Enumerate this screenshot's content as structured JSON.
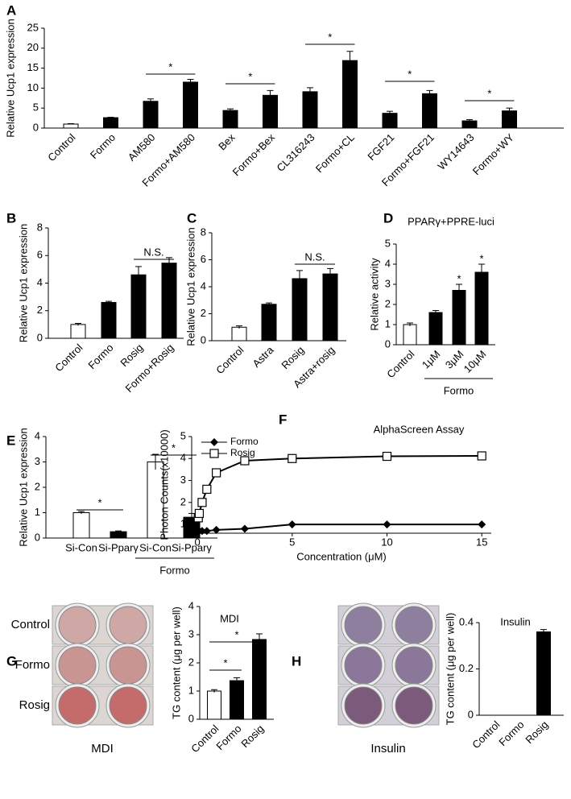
{
  "chart_data": [
    {
      "panel": "A",
      "type": "bar",
      "y_label": "Relative Ucp1 expression",
      "categories": [
        "Control",
        "Formo",
        "AM580",
        "Formo+AM580",
        "Bex",
        "Formo+Bex",
        "CL316243",
        "Formo+CL",
        "FGF21",
        "Formo+FGF21",
        "WY14643",
        "Formo+WY"
      ],
      "values": [
        1,
        2.6,
        6.7,
        11.5,
        4.4,
        8.2,
        9.1,
        16.9,
        3.7,
        8.6,
        1.8,
        4.3
      ],
      "errors": [
        0.1,
        0.1,
        0.6,
        0.7,
        0.4,
        1.2,
        1.0,
        2.3,
        0.5,
        0.8,
        0.3,
        0.7
      ],
      "colors": [
        "#ffffff",
        "#000000",
        "#000000",
        "#000000",
        "#000000",
        "#000000",
        "#000000",
        "#000000",
        "#000000",
        "#000000",
        "#000000",
        "#000000"
      ],
      "ylim": [
        0,
        25
      ],
      "yticks": [
        0,
        5,
        10,
        15,
        20,
        25
      ],
      "annotations": [
        "*",
        "*",
        "*",
        "*",
        "*"
      ]
    },
    {
      "panel": "B",
      "type": "bar",
      "y_label": "Relative Ucp1 expression",
      "categories": [
        "Control",
        "Formo",
        "Rosig",
        "Formo+Rosig"
      ],
      "values": [
        1,
        2.6,
        4.6,
        5.45
      ],
      "errors": [
        0.08,
        0.08,
        0.6,
        0.4
      ],
      "colors": [
        "#ffffff",
        "#000000",
        "#000000",
        "#000000"
      ],
      "ylim": [
        0,
        8
      ],
      "yticks": [
        0,
        2,
        4,
        6,
        8
      ],
      "annotations": [
        "N.S."
      ]
    },
    {
      "panel": "C",
      "type": "bar",
      "y_label": "Relative Ucp1 expression",
      "categories": [
        "Control",
        "Astra",
        "Rosig",
        "Astra+rosig"
      ],
      "values": [
        1,
        2.7,
        4.6,
        4.95
      ],
      "errors": [
        0.1,
        0.1,
        0.6,
        0.4
      ],
      "colors": [
        "#ffffff",
        "#000000",
        "#000000",
        "#000000"
      ],
      "ylim": [
        0,
        8
      ],
      "yticks": [
        0,
        2,
        4,
        6,
        8
      ],
      "annotations": [
        "N.S."
      ]
    },
    {
      "panel": "D",
      "type": "bar",
      "title": "PPARγ+PPRE-luci",
      "y_label": "Relative activity",
      "categories": [
        "Control",
        "1μM",
        "3μM",
        "10μM"
      ],
      "values": [
        1,
        1.6,
        2.7,
        3.6
      ],
      "errors": [
        0.08,
        0.1,
        0.3,
        0.4
      ],
      "colors": [
        "#ffffff",
        "#000000",
        "#000000",
        "#000000"
      ],
      "ylim": [
        0,
        5
      ],
      "yticks": [
        0,
        1,
        2,
        3,
        4,
        5
      ],
      "annotations": [
        "*",
        "*"
      ],
      "group_label": "Formo"
    },
    {
      "panel": "E",
      "type": "bar",
      "y_label": "Relative Ucp1 expression",
      "categories": [
        "Si-Con",
        "Si-Pparγ",
        "Si-Con",
        "Si-Pparγ"
      ],
      "values": [
        1,
        0.25,
        3.0,
        0.82
      ],
      "errors": [
        0.05,
        0.03,
        0.3,
        0.15
      ],
      "colors": [
        "#ffffff",
        "#000000",
        "#ffffff",
        "#000000"
      ],
      "ylim": [
        0,
        4
      ],
      "yticks": [
        0,
        1,
        2,
        3,
        4
      ],
      "annotations": [
        "*",
        "*"
      ],
      "group_label": "Formo"
    },
    {
      "panel": "F",
      "type": "line",
      "title": "AlphaScreen Assay",
      "x_label": "Concentration (μM)",
      "y_label": "Photon Counts(x10000)",
      "x": [
        0.05,
        0.1,
        0.25,
        0.5,
        1,
        2.5,
        5,
        10,
        15
      ],
      "series": [
        {
          "name": "Formo",
          "color": "#000000",
          "marker": "diamond",
          "values": [
            0.7,
            0.7,
            0.7,
            0.7,
            0.75,
            0.8,
            1.0,
            1.0,
            1.0
          ]
        },
        {
          "name": "Rosig",
          "color": "#000000",
          "marker": "square",
          "values": [
            1.3,
            1.5,
            2.0,
            2.6,
            3.35,
            3.9,
            4.0,
            4.1,
            4.12
          ]
        }
      ],
      "xlim": [
        -0.3,
        15.5
      ],
      "xticks": [
        0,
        5,
        10,
        15
      ],
      "ylim": [
        0.6,
        5
      ],
      "yticks": [
        1,
        2,
        3,
        4,
        5
      ]
    },
    {
      "panel": "G",
      "type": "bar",
      "title": "MDI",
      "y_label": "TG content (μg per well)",
      "categories": [
        "Control",
        "Formo",
        "Rosig"
      ],
      "values": [
        1,
        1.37,
        2.83
      ],
      "errors": [
        0.05,
        0.1,
        0.2
      ],
      "colors": [
        "#ffffff",
        "#000000",
        "#000000"
      ],
      "ylim": [
        0,
        4
      ],
      "yticks": [
        0,
        1,
        2,
        3,
        4
      ],
      "annotations": [
        "*",
        "*"
      ],
      "image_labels": [
        "Control",
        "Formo",
        "Rosig"
      ],
      "image_caption": "MDI"
    },
    {
      "panel": "H",
      "type": "bar",
      "title": "Insulin",
      "y_label": "TG content (μg per well)",
      "categories": [
        "Control",
        "Formo",
        "Rosig"
      ],
      "values": [
        0,
        0,
        0.36
      ],
      "errors": [
        0,
        0,
        0.01
      ],
      "colors": [
        "#ffffff",
        "#000000",
        "#000000"
      ],
      "ylim": [
        0,
        0.4
      ],
      "yticks": [
        0,
        0.2,
        0.4
      ],
      "image_caption": "Insulin"
    }
  ]
}
